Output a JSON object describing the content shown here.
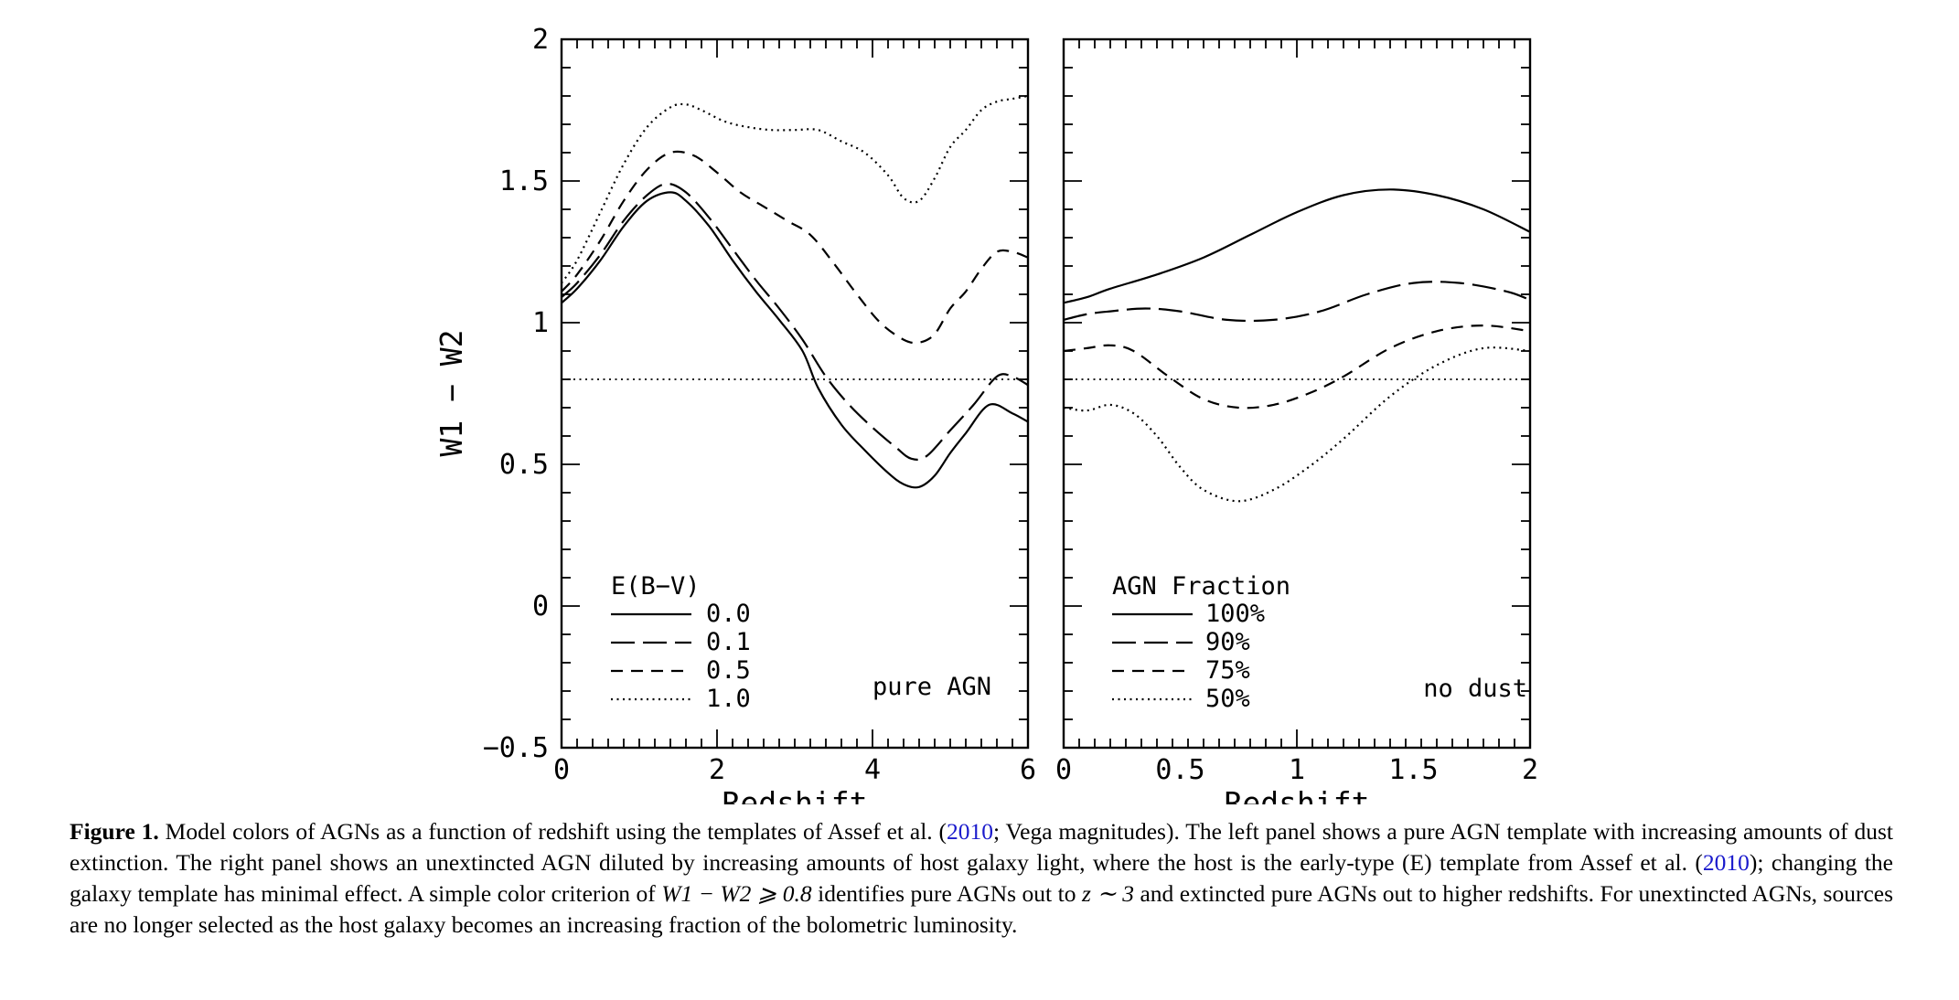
{
  "chart_data": [
    {
      "type": "line",
      "title": "",
      "xlabel": "Redshift",
      "ylabel": "W1 − W2",
      "xlim": [
        0,
        6
      ],
      "ylim": [
        -0.5,
        2
      ],
      "x_ticks": [
        "0",
        "2",
        "4",
        "6"
      ],
      "y_ticks": [
        "−0.5",
        "0",
        "0.5",
        "1",
        "1.5",
        "2"
      ],
      "x_tick_values": [
        0,
        2,
        4,
        6
      ],
      "y_tick_values": [
        -0.5,
        0,
        0.5,
        1,
        1.5,
        2
      ],
      "annotation": "pure AGN",
      "legend_title": "E(B−V)",
      "legend_position": "bottom-left",
      "reference_line": 0.8,
      "series": [
        {
          "name": "0.0",
          "style": "solid",
          "x": [
            0,
            0.2,
            0.5,
            0.8,
            1.1,
            1.4,
            1.6,
            1.9,
            2.2,
            2.5,
            2.8,
            3.1,
            3.3,
            3.6,
            3.9,
            4.2,
            4.4,
            4.6,
            4.8,
            5.0,
            5.2,
            5.5,
            5.8,
            6.0
          ],
          "y": [
            1.07,
            1.12,
            1.22,
            1.34,
            1.43,
            1.46,
            1.43,
            1.34,
            1.22,
            1.11,
            1.01,
            0.9,
            0.77,
            0.64,
            0.55,
            0.47,
            0.43,
            0.42,
            0.46,
            0.54,
            0.61,
            0.71,
            0.68,
            0.65
          ]
        },
        {
          "name": "0.1",
          "style": "long-dash",
          "x": [
            0,
            0.2,
            0.5,
            0.8,
            1.1,
            1.35,
            1.6,
            1.9,
            2.2,
            2.5,
            2.8,
            3.1,
            3.4,
            3.7,
            4.0,
            4.3,
            4.5,
            4.7,
            5.0,
            5.3,
            5.6,
            5.8,
            6.0
          ],
          "y": [
            1.09,
            1.14,
            1.24,
            1.36,
            1.45,
            1.49,
            1.46,
            1.37,
            1.26,
            1.15,
            1.05,
            0.94,
            0.81,
            0.71,
            0.63,
            0.56,
            0.52,
            0.53,
            0.62,
            0.71,
            0.81,
            0.81,
            0.78
          ]
        },
        {
          "name": "0.5",
          "style": "dash",
          "x": [
            0,
            0.2,
            0.5,
            0.8,
            1.1,
            1.4,
            1.7,
            2.0,
            2.3,
            2.6,
            2.9,
            3.2,
            3.5,
            3.8,
            4.1,
            4.4,
            4.6,
            4.8,
            5.0,
            5.2,
            5.4,
            5.6,
            5.8,
            6.0
          ],
          "y": [
            1.11,
            1.17,
            1.29,
            1.43,
            1.54,
            1.6,
            1.59,
            1.53,
            1.46,
            1.41,
            1.36,
            1.31,
            1.21,
            1.1,
            1.0,
            0.94,
            0.93,
            0.96,
            1.05,
            1.11,
            1.19,
            1.25,
            1.25,
            1.23
          ]
        },
        {
          "name": "1.0",
          "style": "dot",
          "x": [
            0,
            0.2,
            0.5,
            0.8,
            1.1,
            1.4,
            1.6,
            1.8,
            2.1,
            2.4,
            2.7,
            3.0,
            3.3,
            3.6,
            3.9,
            4.2,
            4.4,
            4.6,
            4.8,
            5.0,
            5.2,
            5.4,
            5.6,
            5.8,
            6.0
          ],
          "y": [
            1.14,
            1.22,
            1.39,
            1.56,
            1.69,
            1.76,
            1.77,
            1.75,
            1.71,
            1.69,
            1.68,
            1.68,
            1.68,
            1.64,
            1.6,
            1.52,
            1.44,
            1.43,
            1.51,
            1.62,
            1.68,
            1.75,
            1.78,
            1.79,
            1.8
          ]
        }
      ]
    },
    {
      "type": "line",
      "title": "",
      "xlabel": "Redshift",
      "ylabel": "",
      "xlim": [
        0,
        2
      ],
      "ylim": [
        -0.5,
        2
      ],
      "x_ticks": [
        "0",
        "0.5",
        "1",
        "1.5",
        "2"
      ],
      "x_tick_values": [
        0,
        0.5,
        1,
        1.5,
        2
      ],
      "y_tick_values": [
        -0.5,
        0,
        0.5,
        1,
        1.5,
        2
      ],
      "annotation": "no dust",
      "legend_title": "AGN Fraction",
      "legend_position": "bottom-left",
      "reference_line": 0.8,
      "series": [
        {
          "name": "100%",
          "style": "solid",
          "x": [
            0,
            0.1,
            0.2,
            0.4,
            0.6,
            0.8,
            1.0,
            1.2,
            1.4,
            1.6,
            1.8,
            2.0
          ],
          "y": [
            1.07,
            1.09,
            1.12,
            1.17,
            1.23,
            1.31,
            1.39,
            1.45,
            1.47,
            1.45,
            1.4,
            1.32
          ]
        },
        {
          "name": "90%",
          "style": "long-dash",
          "x": [
            0,
            0.1,
            0.2,
            0.35,
            0.5,
            0.7,
            0.9,
            1.1,
            1.3,
            1.5,
            1.7,
            1.9,
            2.0
          ],
          "y": [
            1.01,
            1.03,
            1.04,
            1.05,
            1.04,
            1.01,
            1.01,
            1.04,
            1.1,
            1.14,
            1.14,
            1.11,
            1.08
          ]
        },
        {
          "name": "75%",
          "style": "dash",
          "x": [
            0,
            0.1,
            0.2,
            0.3,
            0.45,
            0.6,
            0.75,
            0.9,
            1.05,
            1.2,
            1.4,
            1.6,
            1.8,
            2.0
          ],
          "y": [
            0.9,
            0.91,
            0.92,
            0.9,
            0.81,
            0.73,
            0.7,
            0.71,
            0.75,
            0.81,
            0.91,
            0.97,
            0.99,
            0.97
          ]
        },
        {
          "name": "50%",
          "style": "dot",
          "x": [
            0,
            0.1,
            0.2,
            0.3,
            0.4,
            0.5,
            0.6,
            0.75,
            0.9,
            1.05,
            1.2,
            1.4,
            1.6,
            1.8,
            2.0
          ],
          "y": [
            0.7,
            0.69,
            0.71,
            0.68,
            0.6,
            0.49,
            0.41,
            0.37,
            0.41,
            0.49,
            0.59,
            0.74,
            0.85,
            0.91,
            0.9
          ]
        }
      ]
    }
  ],
  "caption": {
    "label": "Figure 1.",
    "part1": " Model colors of AGNs as a function of redshift using the templates of Assef et al. (",
    "cite1": "2010",
    "part2": "; Vega magnitudes). The left panel shows a pure AGN template with increasing amounts of dust extinction. The right panel shows an unextincted AGN diluted by increasing amounts of host galaxy light, where the host is the early-type (E) template from Assef et al. (",
    "cite2": "2010",
    "part3": "); changing the galaxy template has minimal effect. A simple color criterion of ",
    "math1": "W1 − W2 ⩾ 0.8",
    "part4": " identifies pure AGNs out to ",
    "math2": "z ∼ 3",
    "part5": " and extincted pure AGNs out to higher redshifts. For unextincted AGNs, sources are no longer selected as the host galaxy becomes an increasing fraction of the bolometric luminosity."
  }
}
